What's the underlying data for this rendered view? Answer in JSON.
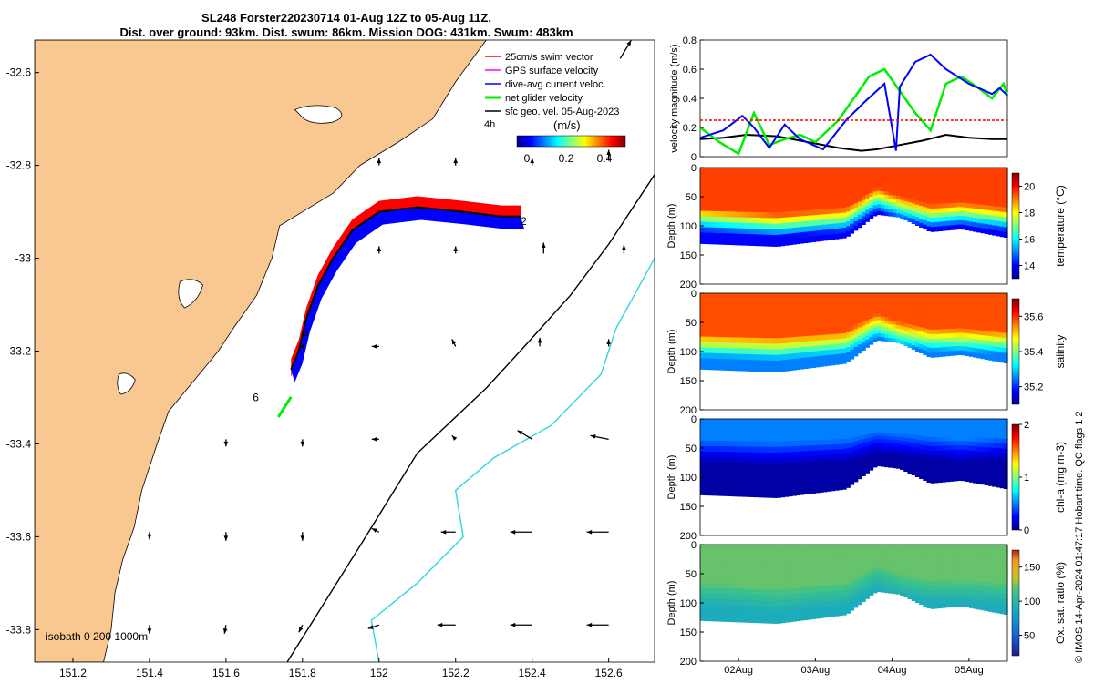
{
  "header": {
    "title_line1": "SL248 Forster220230714 01-Aug 12Z to 05-Aug 11Z.",
    "title_line2": "Dist. over ground: 93km. Dist. swum: 86km. Mission DOG: 431km. Swum: 483km"
  },
  "colors": {
    "land": "#f9c890",
    "isobath_200": "#000000",
    "isobath_1000": "#31d5dd",
    "swim_vector": "#ff0000",
    "gps_velocity": "#ff00ff",
    "dive_avg_current": "#0000ff",
    "net_glider": "#00ee00",
    "sfc_geo": "#000000"
  },
  "chart_data": [
    {
      "type": "map",
      "x_ticks": [
        "151.2",
        "151.4",
        "151.6",
        "151.8",
        "152",
        "152.2",
        "152.4",
        "152.6"
      ],
      "y_ticks": [
        "-32.6",
        "-32.8",
        "-33",
        "-33.2",
        "-33.4",
        "-33.6",
        "-33.8"
      ],
      "xlim": [
        151.1,
        152.72
      ],
      "ylim": [
        -33.87,
        -32.53
      ],
      "legend": {
        "items": [
          "25cm/s swim vector",
          "GPS surface velocity",
          "dive-avg current veloc.",
          "net glider velocity",
          "sfc geo. vel. 05-Aug-2023"
        ],
        "time_note": "4h",
        "colorbar_label": "(m/s)",
        "colorbar_ticks": [
          "0",
          "0.2",
          "0.4"
        ]
      },
      "isobath_label": "isobath  0   200  1000m",
      "glider_track_day_labels": [
        "2",
        "5",
        "6"
      ],
      "glider_track": [
        [
          152.37,
          -32.91
        ],
        [
          152.32,
          -32.91
        ],
        [
          152.22,
          -32.9
        ],
        [
          152.1,
          -32.89
        ],
        [
          152.0,
          -32.9
        ],
        [
          151.93,
          -32.94
        ],
        [
          151.88,
          -33.0
        ],
        [
          151.84,
          -33.06
        ],
        [
          151.81,
          -33.13
        ],
        [
          151.79,
          -33.2
        ],
        [
          151.77,
          -33.24
        ]
      ],
      "sfc_geo_vectors": [
        {
          "lon": 152.63,
          "lat": -32.57,
          "u": 0.15,
          "v": 0.25
        },
        {
          "lon": 152.6,
          "lat": -32.79,
          "u": 0.0,
          "v": 0.15
        },
        {
          "lon": 152.4,
          "lat": -32.8,
          "u": 0.0,
          "v": 0.1
        },
        {
          "lon": 152.2,
          "lat": -32.8,
          "u": 0.0,
          "v": 0.1
        },
        {
          "lon": 152.0,
          "lat": -32.8,
          "u": 0.0,
          "v": 0.1
        },
        {
          "lon": 152.43,
          "lat": -32.99,
          "u": 0.0,
          "v": 0.15
        },
        {
          "lon": 152.64,
          "lat": -32.99,
          "u": 0.0,
          "v": 0.12
        },
        {
          "lon": 152.2,
          "lat": -32.99,
          "u": 0.0,
          "v": 0.1
        },
        {
          "lon": 152.0,
          "lat": -32.99,
          "u": 0.0,
          "v": 0.1
        },
        {
          "lon": 152.42,
          "lat": -33.19,
          "u": 0.0,
          "v": 0.12
        },
        {
          "lon": 152.6,
          "lat": -33.19,
          "u": 0.0,
          "v": 0.1
        },
        {
          "lon": 152.2,
          "lat": -33.19,
          "u": -0.05,
          "v": 0.1
        },
        {
          "lon": 152.0,
          "lat": -33.19,
          "u": -0.1,
          "v": 0.0
        },
        {
          "lon": 151.8,
          "lat": -33.19,
          "u": -0.05,
          "v": 0.0
        },
        {
          "lon": 152.6,
          "lat": -33.39,
          "u": -0.25,
          "v": 0.05
        },
        {
          "lon": 152.4,
          "lat": -33.39,
          "u": -0.2,
          "v": 0.12
        },
        {
          "lon": 152.2,
          "lat": -33.39,
          "u": -0.05,
          "v": 0.05
        },
        {
          "lon": 152.0,
          "lat": -33.39,
          "u": -0.1,
          "v": 0.0
        },
        {
          "lon": 151.8,
          "lat": -33.39,
          "u": 0.0,
          "v": -0.1
        },
        {
          "lon": 151.6,
          "lat": -33.39,
          "u": 0.0,
          "v": -0.1
        },
        {
          "lon": 152.6,
          "lat": -33.59,
          "u": -0.3,
          "v": 0.0
        },
        {
          "lon": 152.4,
          "lat": -33.59,
          "u": -0.3,
          "v": 0.0
        },
        {
          "lon": 152.2,
          "lat": -33.59,
          "u": -0.2,
          "v": 0.0
        },
        {
          "lon": 152.0,
          "lat": -33.59,
          "u": -0.1,
          "v": 0.05
        },
        {
          "lon": 151.8,
          "lat": -33.59,
          "u": 0.0,
          "v": -0.12
        },
        {
          "lon": 151.6,
          "lat": -33.59,
          "u": 0.0,
          "v": -0.12
        },
        {
          "lon": 151.4,
          "lat": -33.59,
          "u": 0.0,
          "v": -0.1
        },
        {
          "lon": 152.6,
          "lat": -33.79,
          "u": -0.3,
          "v": 0.0
        },
        {
          "lon": 152.4,
          "lat": -33.79,
          "u": -0.3,
          "v": 0.0
        },
        {
          "lon": 152.2,
          "lat": -33.79,
          "u": -0.25,
          "v": 0.0
        },
        {
          "lon": 152.0,
          "lat": -33.79,
          "u": -0.15,
          "v": -0.05
        },
        {
          "lon": 151.8,
          "lat": -33.79,
          "u": -0.05,
          "v": -0.1
        },
        {
          "lon": 151.6,
          "lat": -33.79,
          "u": -0.02,
          "v": -0.12
        },
        {
          "lon": 151.4,
          "lat": -33.79,
          "u": 0.0,
          "v": -0.12
        }
      ]
    },
    {
      "type": "line",
      "ylabel": "velocity magnitude (m/s)",
      "ylim": [
        0,
        0.8
      ],
      "y_ticks": [
        "0",
        "0.2",
        "0.4",
        "0.6",
        "0.8"
      ],
      "x_range": [
        0,
        4
      ],
      "series": [
        {
          "color": "#000000",
          "x": [
            0,
            0.3,
            0.6,
            1.0,
            1.4,
            1.8,
            2.1,
            2.3,
            2.6,
            2.9,
            3.2,
            3.5,
            3.8,
            4.0
          ],
          "y": [
            0.12,
            0.13,
            0.15,
            0.14,
            0.1,
            0.06,
            0.04,
            0.05,
            0.08,
            0.11,
            0.15,
            0.13,
            0.12,
            0.12
          ]
        },
        {
          "color": "#00ee00",
          "x": [
            0,
            0.25,
            0.5,
            0.7,
            0.9,
            1.1,
            1.3,
            1.5,
            1.8,
            2.0,
            2.2,
            2.4,
            2.6,
            2.8,
            3.0,
            3.2,
            3.4,
            3.6,
            3.8,
            3.95,
            4.0
          ],
          "y": [
            0.2,
            0.1,
            0.02,
            0.3,
            0.08,
            0.12,
            0.15,
            0.1,
            0.25,
            0.4,
            0.55,
            0.6,
            0.45,
            0.3,
            0.18,
            0.5,
            0.55,
            0.48,
            0.4,
            0.5,
            0.42
          ]
        },
        {
          "color": "#0000ff",
          "x": [
            0,
            0.3,
            0.55,
            0.7,
            0.9,
            1.1,
            1.3,
            1.6,
            1.9,
            2.15,
            2.4,
            2.55,
            2.6,
            2.8,
            3.0,
            3.2,
            3.5,
            3.8,
            3.9,
            4.0
          ],
          "y": [
            0.13,
            0.18,
            0.28,
            0.2,
            0.06,
            0.22,
            0.12,
            0.05,
            0.25,
            0.38,
            0.5,
            0.04,
            0.48,
            0.65,
            0.7,
            0.6,
            0.5,
            0.43,
            0.47,
            0.42
          ]
        },
        {
          "color": "#ff0000",
          "dashed": true,
          "x": [
            0,
            4
          ],
          "y": [
            0.25,
            0.25
          ]
        }
      ]
    },
    {
      "type": "heatmap",
      "variable": "temperature",
      "colorbar_label": "temperature (°C)",
      "colorbar_ticks": [
        "14",
        "16",
        "18",
        "20"
      ],
      "clim": [
        13,
        21
      ],
      "ylabel": "Depth (m)",
      "y_ticks": [
        "0",
        "50",
        "100",
        "150",
        "200"
      ],
      "ylim": [
        0,
        200
      ],
      "surface_value": 19.5,
      "deep_value": 14.0,
      "thermocline_depth": [
        [
          0,
          95
        ],
        [
          1,
          105
        ],
        [
          1.9,
          95
        ],
        [
          2.3,
          60
        ],
        [
          2.6,
          75
        ],
        [
          3.0,
          90
        ],
        [
          3.4,
          85
        ],
        [
          4.0,
          95
        ]
      ],
      "bottom_depth": [
        [
          0,
          130
        ],
        [
          1,
          135
        ],
        [
          1.9,
          120
        ],
        [
          2.3,
          80
        ],
        [
          2.6,
          85
        ],
        [
          3.0,
          110
        ],
        [
          3.4,
          105
        ],
        [
          4.0,
          120
        ]
      ]
    },
    {
      "type": "heatmap",
      "variable": "salinity",
      "colorbar_label": "salinity",
      "colorbar_ticks": [
        "35.2",
        "35.4",
        "35.6"
      ],
      "clim": [
        35.1,
        35.7
      ],
      "ylabel": "Depth (m)",
      "y_ticks": [
        "0",
        "50",
        "100",
        "150",
        "200"
      ],
      "ylim": [
        0,
        200
      ],
      "surface_value": 35.58,
      "deep_value": 35.25,
      "thermocline_depth": [
        [
          0,
          95
        ],
        [
          1,
          100
        ],
        [
          1.9,
          90
        ],
        [
          2.3,
          60
        ],
        [
          2.6,
          75
        ],
        [
          3.0,
          85
        ],
        [
          3.4,
          85
        ],
        [
          4.0,
          90
        ]
      ],
      "bottom_depth": [
        [
          0,
          130
        ],
        [
          1,
          135
        ],
        [
          1.9,
          120
        ],
        [
          2.3,
          80
        ],
        [
          2.6,
          85
        ],
        [
          3.0,
          110
        ],
        [
          3.4,
          105
        ],
        [
          4.0,
          120
        ]
      ]
    },
    {
      "type": "heatmap",
      "variable": "chl-a",
      "colorbar_label": "chl-a (mg m-3)",
      "colorbar_ticks": [
        "0",
        "1",
        "2"
      ],
      "clim": [
        0,
        2
      ],
      "ylabel": "Depth (m)",
      "y_ticks": [
        "0",
        "50",
        "100",
        "150",
        "200"
      ],
      "ylim": [
        0,
        200
      ],
      "surface_value": 0.5,
      "deep_value": 0.05,
      "thermocline_depth": [
        [
          0,
          60
        ],
        [
          1,
          65
        ],
        [
          1.9,
          60
        ],
        [
          2.3,
          45
        ],
        [
          2.6,
          50
        ],
        [
          3.0,
          55
        ],
        [
          3.4,
          60
        ],
        [
          4.0,
          55
        ]
      ],
      "bottom_depth": [
        [
          0,
          130
        ],
        [
          1,
          135
        ],
        [
          1.9,
          120
        ],
        [
          2.3,
          80
        ],
        [
          2.6,
          85
        ],
        [
          3.0,
          110
        ],
        [
          3.4,
          105
        ],
        [
          4.0,
          120
        ]
      ]
    },
    {
      "type": "heatmap",
      "variable": "oxygen",
      "colorbar_label": "Ox. sat. ratio (%)",
      "colorbar_ticks": [
        "50",
        "100",
        "150"
      ],
      "clim": [
        20,
        175
      ],
      "ylabel": "Depth (m)",
      "y_ticks": [
        "0",
        "50",
        "100",
        "150",
        "200"
      ],
      "ylim": [
        0,
        200
      ],
      "surface_value": 120,
      "deep_value": 90,
      "thermocline_depth": [
        [
          0,
          90
        ],
        [
          1,
          100
        ],
        [
          1.9,
          90
        ],
        [
          2.3,
          60
        ],
        [
          2.6,
          75
        ],
        [
          3.0,
          85
        ],
        [
          3.4,
          85
        ],
        [
          4.0,
          90
        ]
      ],
      "bottom_depth": [
        [
          0,
          130
        ],
        [
          1,
          135
        ],
        [
          1.9,
          120
        ],
        [
          2.3,
          80
        ],
        [
          2.6,
          85
        ],
        [
          3.0,
          110
        ],
        [
          3.4,
          105
        ],
        [
          4.0,
          120
        ]
      ],
      "x_ticks": [
        "02Aug",
        "03Aug",
        "04Aug",
        "05Aug"
      ]
    }
  ],
  "footer": {
    "copyright": "© IMOS 14-Apr-2024 01:47:17 Hobart time. QC flags 1  2"
  }
}
